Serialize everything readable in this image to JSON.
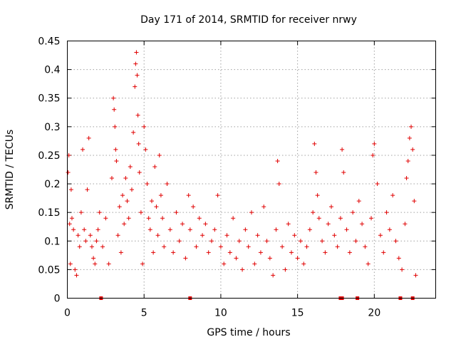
{
  "chart_data": {
    "type": "scatter",
    "title": "Day 171 of 2014, SRMTID for receiver nrwy",
    "xlabel": "GPS time / hours",
    "ylabel": "SRMTID / TECUs",
    "xlim": [
      0,
      24
    ],
    "ylim": [
      0,
      0.45
    ],
    "xticks": [
      0,
      5,
      10,
      15,
      20
    ],
    "xtick_labels": [
      "0",
      "5",
      "10",
      "15",
      "20"
    ],
    "yticks": [
      0,
      0.05,
      0.1,
      0.15,
      0.2,
      0.25,
      0.3,
      0.35,
      0.4,
      0.45
    ],
    "ytick_labels": [
      "0",
      "0.05",
      "0.1",
      "0.15",
      "0.2",
      "0.25",
      "0.3",
      "0.35",
      "0.4",
      "0.45"
    ],
    "grid": true,
    "marker": "plus",
    "color": "#e00000",
    "series": [
      {
        "name": "SRMTID",
        "x": [
          0.05,
          0.1,
          0.15,
          0.2,
          0.25,
          0.3,
          0.4,
          0.5,
          0.6,
          0.7,
          0.8,
          0.9,
          1.0,
          1.1,
          1.2,
          1.3,
          1.4,
          1.5,
          1.6,
          1.7,
          1.8,
          1.9,
          2.0,
          2.1,
          2.3,
          2.5,
          2.7,
          2.9,
          3.0,
          3.05,
          3.1,
          3.15,
          3.2,
          3.3,
          3.4,
          3.5,
          3.6,
          3.7,
          3.8,
          3.9,
          4.0,
          4.1,
          4.2,
          4.3,
          4.4,
          4.45,
          4.5,
          4.55,
          4.6,
          4.65,
          4.7,
          4.8,
          4.9,
          5.0,
          5.1,
          5.2,
          5.3,
          5.4,
          5.5,
          5.6,
          5.7,
          5.8,
          5.9,
          6.0,
          6.1,
          6.2,
          6.3,
          6.5,
          6.7,
          6.9,
          7.1,
          7.3,
          7.5,
          7.7,
          7.9,
          8.0,
          8.2,
          8.4,
          8.6,
          8.8,
          9.0,
          9.2,
          9.4,
          9.6,
          9.8,
          10.0,
          10.2,
          10.4,
          10.6,
          10.8,
          11.0,
          11.2,
          11.4,
          11.6,
          11.8,
          12.0,
          12.2,
          12.4,
          12.6,
          12.8,
          13.0,
          13.2,
          13.4,
          13.6,
          13.7,
          13.8,
          14.0,
          14.2,
          14.4,
          14.6,
          14.8,
          15.0,
          15.2,
          15.4,
          15.6,
          15.8,
          16.0,
          16.1,
          16.2,
          16.3,
          16.4,
          16.6,
          16.8,
          17.0,
          17.2,
          17.4,
          17.6,
          17.8,
          17.9,
          18.0,
          18.2,
          18.4,
          18.6,
          18.8,
          19.0,
          19.2,
          19.4,
          19.6,
          19.8,
          19.9,
          20.0,
          20.2,
          20.4,
          20.6,
          20.8,
          21.0,
          21.2,
          21.4,
          21.6,
          21.8,
          22.0,
          22.1,
          22.2,
          22.3,
          22.4,
          22.5,
          22.6,
          22.7
        ],
        "y": [
          0.22,
          0.25,
          0.13,
          0.06,
          0.19,
          0.14,
          0.12,
          0.05,
          0.04,
          0.11,
          0.09,
          0.15,
          0.26,
          0.12,
          0.1,
          0.19,
          0.28,
          0.11,
          0.09,
          0.07,
          0.06,
          0.1,
          0.12,
          0.15,
          0.09,
          0.14,
          0.06,
          0.21,
          0.35,
          0.33,
          0.3,
          0.26,
          0.24,
          0.11,
          0.16,
          0.08,
          0.18,
          0.13,
          0.21,
          0.17,
          0.14,
          0.23,
          0.19,
          0.29,
          0.37,
          0.41,
          0.43,
          0.39,
          0.32,
          0.27,
          0.22,
          0.15,
          0.06,
          0.3,
          0.26,
          0.2,
          0.14,
          0.12,
          0.17,
          0.08,
          0.23,
          0.16,
          0.11,
          0.25,
          0.18,
          0.14,
          0.09,
          0.2,
          0.12,
          0.08,
          0.15,
          0.1,
          0.13,
          0.07,
          0.18,
          0.12,
          0.16,
          0.09,
          0.14,
          0.11,
          0.13,
          0.08,
          0.1,
          0.12,
          0.18,
          0.09,
          0.06,
          0.11,
          0.08,
          0.14,
          0.07,
          0.1,
          0.05,
          0.12,
          0.09,
          0.15,
          0.06,
          0.11,
          0.08,
          0.16,
          0.1,
          0.07,
          0.04,
          0.12,
          0.24,
          0.2,
          0.09,
          0.05,
          0.13,
          0.08,
          0.11,
          0.07,
          0.1,
          0.06,
          0.09,
          0.12,
          0.15,
          0.27,
          0.22,
          0.18,
          0.14,
          0.1,
          0.08,
          0.13,
          0.16,
          0.11,
          0.09,
          0.14,
          0.26,
          0.22,
          0.12,
          0.08,
          0.15,
          0.1,
          0.17,
          0.13,
          0.09,
          0.06,
          0.14,
          0.25,
          0.27,
          0.2,
          0.11,
          0.08,
          0.15,
          0.12,
          0.18,
          0.1,
          0.07,
          0.05,
          0.13,
          0.21,
          0.24,
          0.28,
          0.3,
          0.26,
          0.17,
          0.04
        ]
      }
    ],
    "data_gaps_x": [
      2.2,
      8.0,
      17.8,
      17.9,
      18.9,
      21.7,
      22.5
    ]
  }
}
